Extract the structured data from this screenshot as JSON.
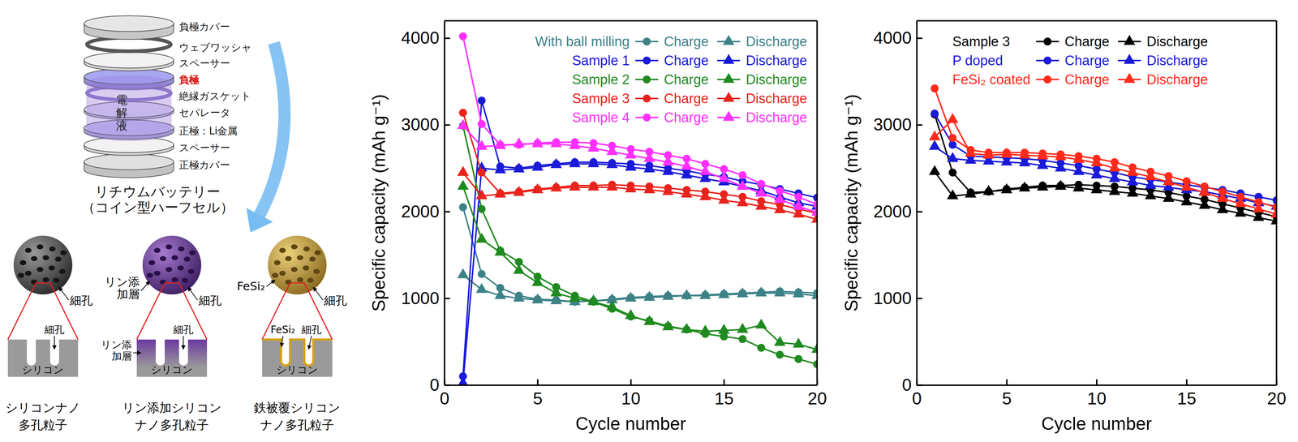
{
  "diagram": {
    "coin_cell": {
      "layers": [
        "負極カバー",
        "ウェブワッシャ",
        "スペーサー",
        "負極",
        "絶縁ガスケット",
        "セパレータ",
        "正極：Li金属",
        "スペーサー",
        "正極カバー"
      ],
      "electrolyte": "電解液",
      "title": [
        "リチウムバッテリー",
        "（コイン型ハーフセル）"
      ]
    },
    "particles": [
      {
        "caption": [
          "シリコンナノ",
          "多孔粒子"
        ],
        "surface_labels": [
          [
            "細孔"
          ]
        ],
        "section_labels": [
          [
            "細孔"
          ]
        ],
        "section_material": "シリコン"
      },
      {
        "caption": [
          "リン添加シリコン",
          "ナノ多孔粒子"
        ],
        "surface_labels": [
          [
            "リン添",
            "加層"
          ],
          [
            "細孔"
          ]
        ],
        "section_labels": [
          [
            "リン添",
            "加層"
          ],
          [
            "細孔"
          ]
        ],
        "section_material": "シリコン"
      },
      {
        "caption": [
          "鉄被覆シリコン",
          "ナノ多孔粒子"
        ],
        "surface_labels": [
          [
            "FeSi₂"
          ],
          [
            "細孔"
          ]
        ],
        "section_labels": [
          [
            "FeSi₂"
          ],
          [
            "細孔"
          ]
        ],
        "section_material": "シリコン"
      }
    ]
  },
  "chart_data": [
    {
      "type": "line",
      "xlabel": "Cycle number",
      "ylabel": "Specific capacity (mAh g⁻¹)",
      "x": [
        1,
        2,
        3,
        4,
        5,
        6,
        7,
        8,
        9,
        10,
        11,
        12,
        13,
        14,
        15,
        16,
        17,
        18,
        19,
        20
      ],
      "xlim": [
        0,
        20
      ],
      "xticks": [
        0,
        5,
        10,
        15,
        20
      ],
      "ylim": [
        0,
        4200
      ],
      "yticks": [
        0,
        1000,
        2000,
        3000,
        4000
      ],
      "legend": "upper right",
      "series": [
        {
          "name": "With ball milling",
          "color": "#3d8287",
          "series": [
            {
              "name": "Charge",
              "marker": "circle",
              "values": [
                2050,
                1280,
                1120,
                1030,
                990,
                980,
                960,
                970,
                990,
                1010,
                1020,
                1030,
                1030,
                1040,
                1050,
                1060,
                1070,
                1080,
                1070,
                1060
              ]
            },
            {
              "name": "Discharge",
              "marker": "triangle",
              "values": [
                1270,
                1100,
                1030,
                1000,
                980,
                970,
                960,
                970,
                980,
                1000,
                1010,
                1020,
                1030,
                1030,
                1040,
                1050,
                1060,
                1060,
                1050,
                1030
              ]
            }
          ]
        },
        {
          "name": "Sample 1",
          "color": "#1a1ad8",
          "series": [
            {
              "name": "Charge",
              "marker": "circle",
              "values": [
                100,
                3280,
                2520,
                2500,
                2530,
                2550,
                2570,
                2570,
                2560,
                2550,
                2530,
                2500,
                2470,
                2430,
                2400,
                2350,
                2310,
                2260,
                2210,
                2160
              ]
            },
            {
              "name": "Discharge",
              "marker": "triangle",
              "values": [
                20,
                2500,
                2480,
                2490,
                2510,
                2540,
                2550,
                2550,
                2540,
                2510,
                2490,
                2460,
                2420,
                2380,
                2340,
                2290,
                2240,
                2170,
                2100,
                2060
              ]
            }
          ]
        },
        {
          "name": "Sample 2",
          "color": "#1f8a1f",
          "series": [
            {
              "name": "Charge",
              "marker": "circle",
              "values": [
                2990,
                2030,
                1550,
                1420,
                1250,
                1130,
                1030,
                960,
                880,
                790,
                740,
                680,
                640,
                590,
                560,
                530,
                430,
                350,
                300,
                240
              ]
            },
            {
              "name": "Discharge",
              "marker": "triangle",
              "values": [
                2290,
                1680,
                1530,
                1320,
                1180,
                1060,
                1000,
                960,
                900,
                800,
                730,
                670,
                640,
                620,
                630,
                640,
                690,
                490,
                470,
                410
              ]
            }
          ]
        },
        {
          "name": "Sample 3",
          "color": "#e8231c",
          "series": [
            {
              "name": "Charge",
              "marker": "circle",
              "values": [
                3140,
                2450,
                2210,
                2230,
                2260,
                2280,
                2300,
                2300,
                2310,
                2300,
                2290,
                2270,
                2250,
                2230,
                2200,
                2170,
                2120,
                2080,
                2030,
                1980
              ]
            },
            {
              "name": "Discharge",
              "marker": "triangle",
              "values": [
                2450,
                2180,
                2200,
                2220,
                2250,
                2270,
                2280,
                2280,
                2280,
                2260,
                2250,
                2230,
                2200,
                2170,
                2130,
                2100,
                2060,
                2020,
                1970,
                1910
              ]
            }
          ]
        },
        {
          "name": "Sample 4",
          "color": "#ff30ff",
          "series": [
            {
              "name": "Charge",
              "marker": "circle",
              "values": [
                4020,
                3010,
                2770,
                2770,
                2790,
                2800,
                2800,
                2790,
                2760,
                2720,
                2690,
                2650,
                2610,
                2550,
                2490,
                2420,
                2320,
                2240,
                2170,
                2080
              ]
            },
            {
              "name": "Discharge",
              "marker": "triangle",
              "values": [
                2990,
                2750,
                2760,
                2780,
                2780,
                2780,
                2760,
                2730,
                2690,
                2650,
                2610,
                2570,
                2520,
                2460,
                2380,
                2290,
                2210,
                2140,
                2060,
                1990
              ]
            }
          ]
        }
      ]
    },
    {
      "type": "line",
      "xlabel": "Cycle number",
      "ylabel": "Specific capacity (mAh g⁻¹)",
      "x": [
        1,
        2,
        3,
        4,
        5,
        6,
        7,
        8,
        9,
        10,
        11,
        12,
        13,
        14,
        15,
        16,
        17,
        18,
        19,
        20
      ],
      "xlim": [
        0,
        20
      ],
      "xticks": [
        0,
        5,
        10,
        15,
        20
      ],
      "ylim": [
        0,
        4200
      ],
      "yticks": [
        0,
        1000,
        2000,
        3000,
        4000
      ],
      "legend": "upper left",
      "series": [
        {
          "name": "Sample 3",
          "color": "#000000",
          "series": [
            {
              "name": "Charge",
              "marker": "circle",
              "values": [
                3120,
                2450,
                2220,
                2230,
                2260,
                2280,
                2300,
                2300,
                2310,
                2300,
                2290,
                2270,
                2250,
                2220,
                2180,
                2140,
                2090,
                2040,
                1990,
                1940
              ]
            },
            {
              "name": "Discharge",
              "marker": "triangle",
              "values": [
                2460,
                2180,
                2200,
                2230,
                2250,
                2270,
                2280,
                2290,
                2270,
                2250,
                2230,
                2210,
                2180,
                2150,
                2110,
                2070,
                2020,
                1980,
                1930,
                1890
              ]
            }
          ]
        },
        {
          "name": "P doped",
          "color": "#1a1ad8",
          "series": [
            {
              "name": "Charge",
              "marker": "circle",
              "values": [
                3130,
                2770,
                2640,
                2630,
                2620,
                2610,
                2590,
                2560,
                2530,
                2490,
                2450,
                2400,
                2370,
                2340,
                2310,
                2280,
                2250,
                2210,
                2170,
                2130
              ]
            },
            {
              "name": "Discharge",
              "marker": "triangle",
              "values": [
                2750,
                2610,
                2590,
                2580,
                2570,
                2560,
                2530,
                2500,
                2460,
                2420,
                2380,
                2340,
                2300,
                2280,
                2250,
                2230,
                2190,
                2150,
                2100,
                2060
              ]
            }
          ]
        },
        {
          "name": "FeSi₂ coated",
          "color": "#ff2a1a",
          "series": [
            {
              "name": "Charge",
              "marker": "circle",
              "values": [
                3420,
                2850,
                2710,
                2680,
                2680,
                2680,
                2670,
                2660,
                2640,
                2610,
                2570,
                2510,
                2460,
                2410,
                2350,
                2290,
                2230,
                2170,
                2110,
                2050
              ]
            },
            {
              "name": "Discharge",
              "marker": "triangle",
              "values": [
                2860,
                3060,
                2670,
                2650,
                2660,
                2650,
                2640,
                2630,
                2600,
                2560,
                2500,
                2450,
                2400,
                2340,
                2280,
                2220,
                2150,
                2090,
                2030,
                1970
              ]
            }
          ]
        }
      ]
    }
  ]
}
